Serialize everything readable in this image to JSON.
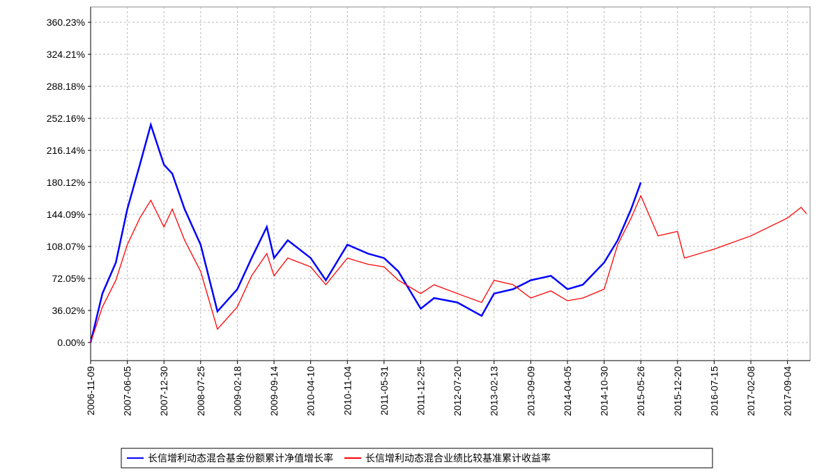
{
  "chart_data": {
    "type": "line",
    "x": [
      "2006-11-09",
      "2007-01-15",
      "2007-04-01",
      "2007-06-05",
      "2007-08-15",
      "2007-10-16",
      "2007-12-30",
      "2008-02-15",
      "2008-04-25",
      "2008-07-25",
      "2008-10-28",
      "2009-02-18",
      "2009-05-10",
      "2009-08-04",
      "2009-09-14",
      "2009-12-01",
      "2010-04-10",
      "2010-07-05",
      "2010-11-04",
      "2011-03-01",
      "2011-05-31",
      "2011-08-20",
      "2011-12-25",
      "2012-03-10",
      "2012-07-20",
      "2012-12-04",
      "2013-02-13",
      "2013-06-01",
      "2013-09-09",
      "2014-01-01",
      "2014-04-05",
      "2014-07-01",
      "2014-10-30",
      "2015-01-15",
      "2015-04-01",
      "2015-05-26",
      "2015-09-01",
      "2015-12-20",
      "2016-01-28",
      "2016-07-15",
      "2017-02-08",
      "2017-09-04",
      "2017-11-20",
      "2017-12-20"
    ],
    "series": [
      {
        "name": "长信增利动态混合基金份额累计净值增长率",
        "color": "#0000ff",
        "values": [
          0,
          55,
          90,
          150,
          200,
          245,
          200,
          190,
          150,
          110,
          35,
          60,
          95,
          130,
          95,
          115,
          95,
          70,
          110,
          100,
          95,
          80,
          38,
          50,
          45,
          30,
          55,
          60,
          70,
          75,
          60,
          65,
          90,
          115,
          150,
          180,
          null,
          null,
          null,
          null,
          null,
          null,
          null,
          null
        ]
      },
      {
        "name": "长信增利动态混合业绩比较基准累计收益率",
        "color": "#ff0000",
        "values": [
          0,
          40,
          70,
          110,
          140,
          160,
          130,
          150,
          115,
          80,
          15,
          40,
          75,
          100,
          75,
          95,
          85,
          65,
          95,
          88,
          85,
          70,
          55,
          65,
          55,
          45,
          70,
          65,
          50,
          58,
          47,
          50,
          60,
          110,
          140,
          165,
          120,
          125,
          95,
          105,
          120,
          140,
          152,
          145
        ]
      }
    ],
    "xlim": [
      "2006-11-09",
      "2018-01-10"
    ],
    "xticks": [
      "2006-11-09",
      "2007-06-05",
      "2007-12-30",
      "2008-07-25",
      "2009-02-18",
      "2009-09-14",
      "2010-04-10",
      "2010-11-04",
      "2011-05-31",
      "2011-12-25",
      "2012-07-20",
      "2013-02-13",
      "2013-09-09",
      "2014-04-05",
      "2014-10-30",
      "2015-05-26",
      "2015-12-20",
      "2016-07-15",
      "2017-02-08",
      "2017-09-04"
    ],
    "ylim": [
      -20.4,
      377.5
    ],
    "yticks": [
      {
        "value": 0,
        "label": "0.00%"
      },
      {
        "value": 36.02,
        "label": "36.02%"
      },
      {
        "value": 72.05,
        "label": "72.05%"
      },
      {
        "value": 108.07,
        "label": "108.07%"
      },
      {
        "value": 144.09,
        "label": "144.09%"
      },
      {
        "value": 180.12,
        "label": "180.12%"
      },
      {
        "value": 216.14,
        "label": "216.14%"
      },
      {
        "value": 252.16,
        "label": "252.16%"
      },
      {
        "value": 288.18,
        "label": "288.18%"
      },
      {
        "value": 324.21,
        "label": "324.21%"
      },
      {
        "value": 360.23,
        "label": "360.23%"
      }
    ],
    "grid": true
  }
}
